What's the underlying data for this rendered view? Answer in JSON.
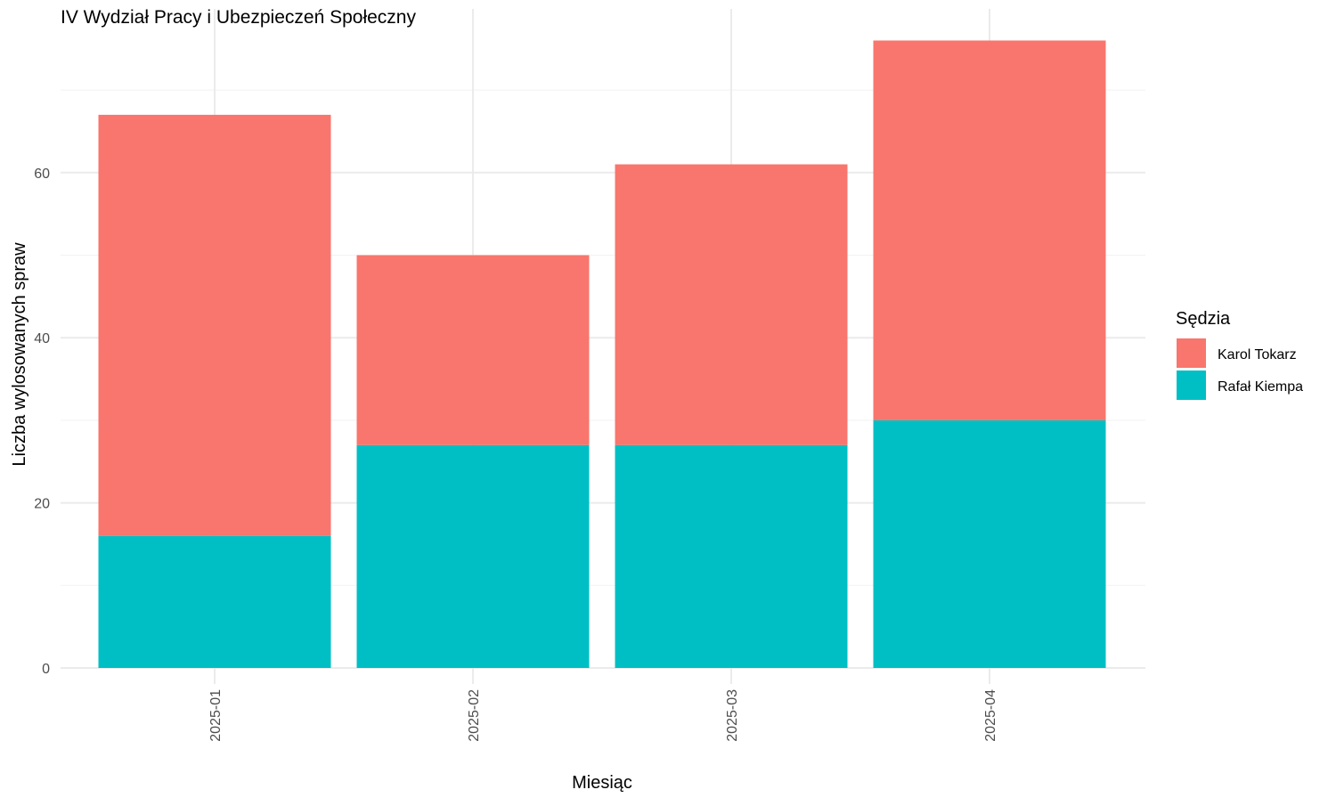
{
  "chart_data": {
    "type": "bar",
    "stacked": true,
    "title": "IV Wydział Pracy i Ubezpieczeń Społeczny",
    "xlabel": "Miesiąc",
    "ylabel": "Liczba wylosowanych spraw",
    "categories": [
      "2025-01",
      "2025-02",
      "2025-03",
      "2025-04"
    ],
    "series": [
      {
        "name": "Rafał Kiempa",
        "color": "#00BFC4",
        "values": [
          16,
          27,
          27,
          30
        ]
      },
      {
        "name": "Karol Tokarz",
        "color": "#F8766D",
        "values": [
          51,
          23,
          34,
          46
        ]
      }
    ],
    "ylim": [
      0,
      76
    ],
    "yticks": [
      0,
      20,
      40,
      60
    ],
    "grid": true,
    "legend": {
      "title": "Sędzia",
      "position": "right",
      "order": [
        "Karol Tokarz",
        "Rafał Kiempa"
      ]
    }
  }
}
